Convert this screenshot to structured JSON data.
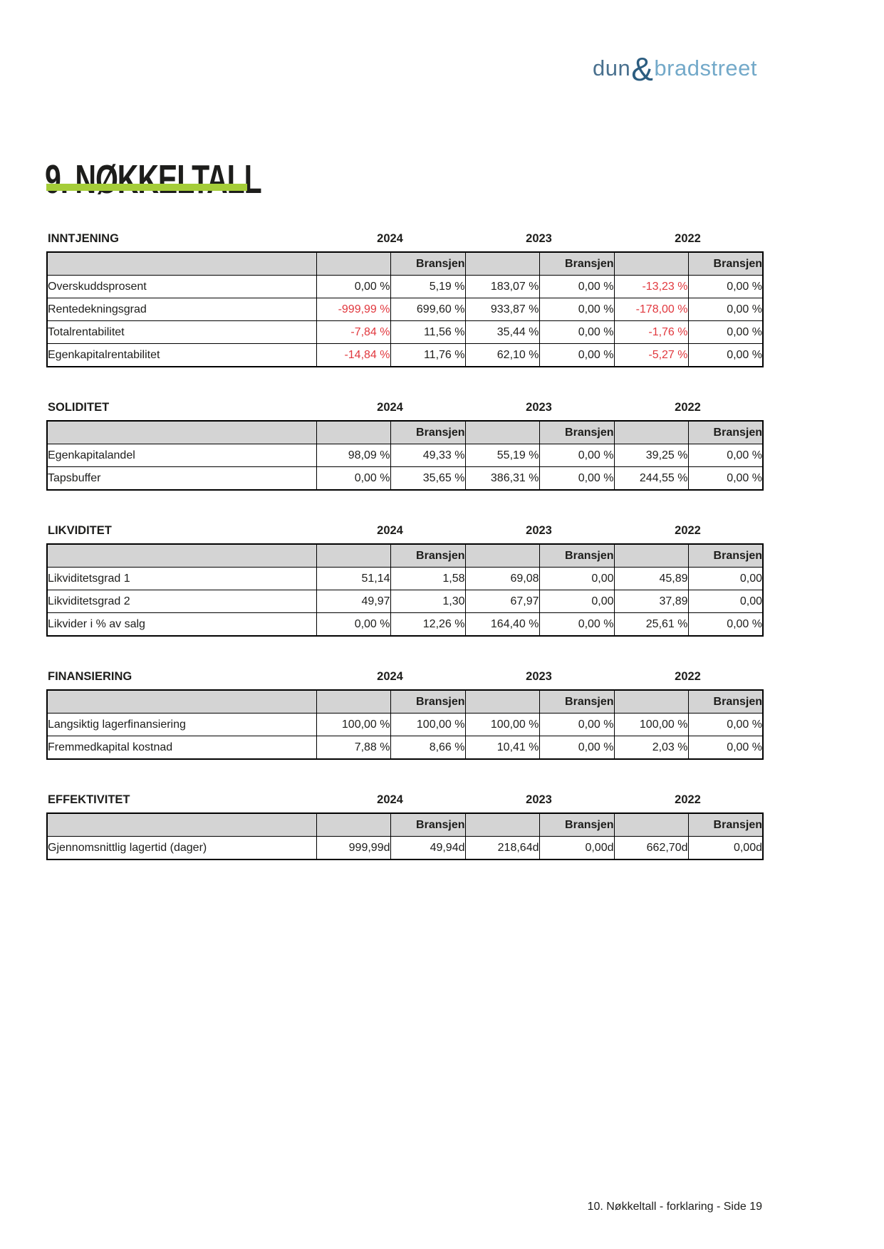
{
  "page": {
    "title": "9. NØKKELTALL",
    "footer": "10. Nøkkeltall - forklaring - Side 19",
    "accent_green": "#a5cd39",
    "negative_red": "#e1383e",
    "header_gray": "#d4d4d4"
  },
  "logo": {
    "part1": "dun",
    "amp": "&",
    "part2": "bradstreet",
    "color_part1": "#49708e",
    "color_amp": "#2c5d80",
    "color_part2": "#73a9c9"
  },
  "years": [
    "2024",
    "2023",
    "2022"
  ],
  "bransjen_label": "Bransjen",
  "sections": [
    {
      "heading": "INNTJENING",
      "rows": [
        {
          "label": "Overskuddsprosent",
          "values": [
            "0,00 %",
            "5,19 %",
            "183,07 %",
            "0,00 %",
            "-13,23 %",
            "0,00 %"
          ]
        },
        {
          "label": "Rentedekningsgrad",
          "values": [
            "-999,99 %",
            "699,60 %",
            "933,87 %",
            "0,00 %",
            "-178,00 %",
            "0,00 %"
          ]
        },
        {
          "label": "Totalrentabilitet",
          "values": [
            "-7,84 %",
            "11,56 %",
            "35,44 %",
            "0,00 %",
            "-1,76 %",
            "0,00 %"
          ]
        },
        {
          "label": "Egenkapitalrentabilitet",
          "values": [
            "-14,84 %",
            "11,76 %",
            "62,10 %",
            "0,00 %",
            "-5,27 %",
            "0,00 %"
          ]
        }
      ]
    },
    {
      "heading": "SOLIDITET",
      "rows": [
        {
          "label": "Egenkapitalandel",
          "values": [
            "98,09 %",
            "49,33 %",
            "55,19 %",
            "0,00 %",
            "39,25 %",
            "0,00 %"
          ]
        },
        {
          "label": "Tapsbuffer",
          "values": [
            "0,00 %",
            "35,65 %",
            "386,31 %",
            "0,00 %",
            "244,55 %",
            "0,00 %"
          ]
        }
      ]
    },
    {
      "heading": "LIKVIDITET",
      "rows": [
        {
          "label": "Likviditetsgrad 1",
          "values": [
            "51,14",
            "1,58",
            "69,08",
            "0,00",
            "45,89",
            "0,00"
          ]
        },
        {
          "label": "Likviditetsgrad 2",
          "values": [
            "49,97",
            "1,30",
            "67,97",
            "0,00",
            "37,89",
            "0,00"
          ]
        },
        {
          "label": "Likvider i % av salg",
          "values": [
            "0,00 %",
            "12,26 %",
            "164,40 %",
            "0,00 %",
            "25,61 %",
            "0,00 %"
          ]
        }
      ]
    },
    {
      "heading": "FINANSIERING",
      "rows": [
        {
          "label": "Langsiktig lagerfinansiering",
          "values": [
            "100,00 %",
            "100,00 %",
            "100,00 %",
            "0,00 %",
            "100,00 %",
            "0,00 %"
          ]
        },
        {
          "label": "Fremmedkapital kostnad",
          "values": [
            "7,88 %",
            "8,66 %",
            "10,41 %",
            "0,00 %",
            "2,03 %",
            "0,00 %"
          ]
        }
      ]
    },
    {
      "heading": "EFFEKTIVITET",
      "rows": [
        {
          "label": "Gjennomsnittlig lagertid (dager)",
          "values": [
            "999,99d",
            "49,94d",
            "218,64d",
            "0,00d",
            "662,70d",
            "0,00d"
          ]
        }
      ]
    }
  ]
}
